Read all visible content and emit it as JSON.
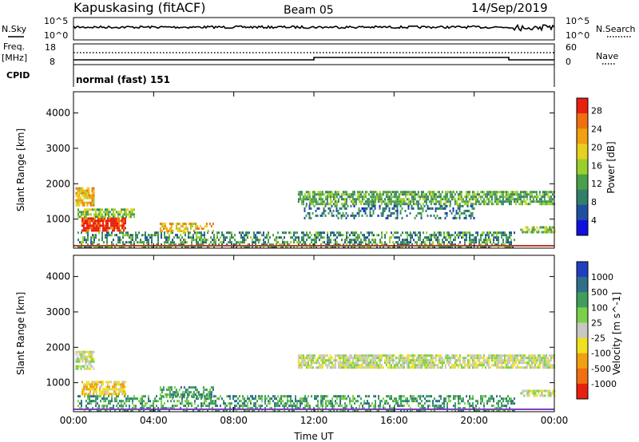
{
  "header": {
    "station": "Kapuskasing (fitACF)",
    "beam": "Beam 05",
    "date": "14/Sep/2019"
  },
  "noise_panel": {
    "left_label": "N.Sky",
    "right_label": "N.Search",
    "left_ticks": [
      "10^5",
      "10^0"
    ],
    "right_ticks": [
      "10^5",
      "10^0"
    ]
  },
  "freq_panel": {
    "left_label_1": "Freq.",
    "left_label_2": "[MHz]",
    "right_label": "Nave",
    "left_ticks": [
      "18",
      "8"
    ],
    "right_ticks": [
      "60",
      "0"
    ]
  },
  "cpid": {
    "label": "CPID",
    "value": "normal (fast) 151"
  },
  "chart_data": [
    {
      "type": "heatmap",
      "panel": "power",
      "ylabel": "Slant Range [km]",
      "xlabel": "",
      "x_ticks": [
        "00:00",
        "04:00",
        "08:00",
        "12:00",
        "16:00",
        "20:00",
        "00:00"
      ],
      "x_range_hours": [
        0,
        24
      ],
      "y_ticks": [
        1000,
        2000,
        3000,
        4000
      ],
      "ylim": [
        180,
        4600
      ],
      "colorbar": {
        "label": "Power [dB]",
        "ticks": [
          "4",
          "8",
          "12",
          "16",
          "20",
          "24",
          "28"
        ],
        "range": [
          0,
          30
        ],
        "colors": [
          "#1010e0",
          "#1f4fa0",
          "#2f7f6a",
          "#4aa04a",
          "#9ad02a",
          "#e8d020",
          "#f0a010",
          "#f07010",
          "#e82010"
        ]
      },
      "regions": [
        {
          "t0": 0.2,
          "t1": 22.0,
          "r0": 180,
          "r1": 650,
          "value": 10,
          "density": 0.55
        },
        {
          "t0": 0.4,
          "t1": 2.6,
          "r0": 700,
          "r1": 1050,
          "value": 28,
          "density": 0.9
        },
        {
          "t0": 0.2,
          "t1": 3.0,
          "r0": 1080,
          "r1": 1300,
          "value": 14,
          "density": 0.7
        },
        {
          "t0": 0.1,
          "t1": 1.0,
          "r0": 1400,
          "r1": 1900,
          "value": 20,
          "density": 0.8
        },
        {
          "t0": 4.3,
          "t1": 7.0,
          "r0": 650,
          "r1": 900,
          "value": 20,
          "density": 0.5
        },
        {
          "t0": 11.2,
          "t1": 24.0,
          "r0": 1400,
          "r1": 1800,
          "value": 12,
          "density": 0.75
        },
        {
          "t0": 11.5,
          "t1": 20.0,
          "r0": 1050,
          "r1": 1400,
          "value": 8,
          "density": 0.35
        },
        {
          "t0": 22.3,
          "t1": 24.0,
          "r0": 600,
          "r1": 800,
          "value": 14,
          "density": 0.6
        }
      ]
    },
    {
      "type": "heatmap",
      "panel": "velocity",
      "ylabel": "Slant Range [km]",
      "xlabel": "Time UT",
      "x_ticks": [
        "00:00",
        "04:00",
        "08:00",
        "12:00",
        "16:00",
        "20:00",
        "00:00"
      ],
      "x_range_hours": [
        0,
        24
      ],
      "y_ticks": [
        1000,
        2000,
        3000,
        4000
      ],
      "ylim": [
        180,
        4600
      ],
      "colorbar": {
        "label": "Velocity [m s^-1]",
        "ticks": [
          "1000",
          "500",
          "100",
          "25",
          "-25",
          "-100",
          "-500",
          "-1000"
        ],
        "colors": [
          "#1f3fc0",
          "#2f6f8a",
          "#3f9f5a",
          "#7ad04a",
          "#c8c8c0",
          "#f0e020",
          "#f0a010",
          "#f07010",
          "#e82010"
        ]
      },
      "regions": [
        {
          "t0": 0.2,
          "t1": 22.0,
          "r0": 180,
          "r1": 650,
          "value": 100,
          "density": 0.5
        },
        {
          "t0": 0.4,
          "t1": 2.6,
          "r0": 700,
          "r1": 1050,
          "value": -100,
          "density": 0.8
        },
        {
          "t0": 0.1,
          "t1": 1.0,
          "r0": 1400,
          "r1": 1900,
          "value": 0,
          "density": 0.7
        },
        {
          "t0": 4.3,
          "t1": 7.0,
          "r0": 600,
          "r1": 900,
          "value": 100,
          "density": 0.6
        },
        {
          "t0": 11.2,
          "t1": 24.0,
          "r0": 1400,
          "r1": 1800,
          "value": 0,
          "density": 0.8
        },
        {
          "t0": 22.3,
          "t1": 24.0,
          "r0": 600,
          "r1": 800,
          "value": 0,
          "density": 0.6
        }
      ]
    }
  ]
}
